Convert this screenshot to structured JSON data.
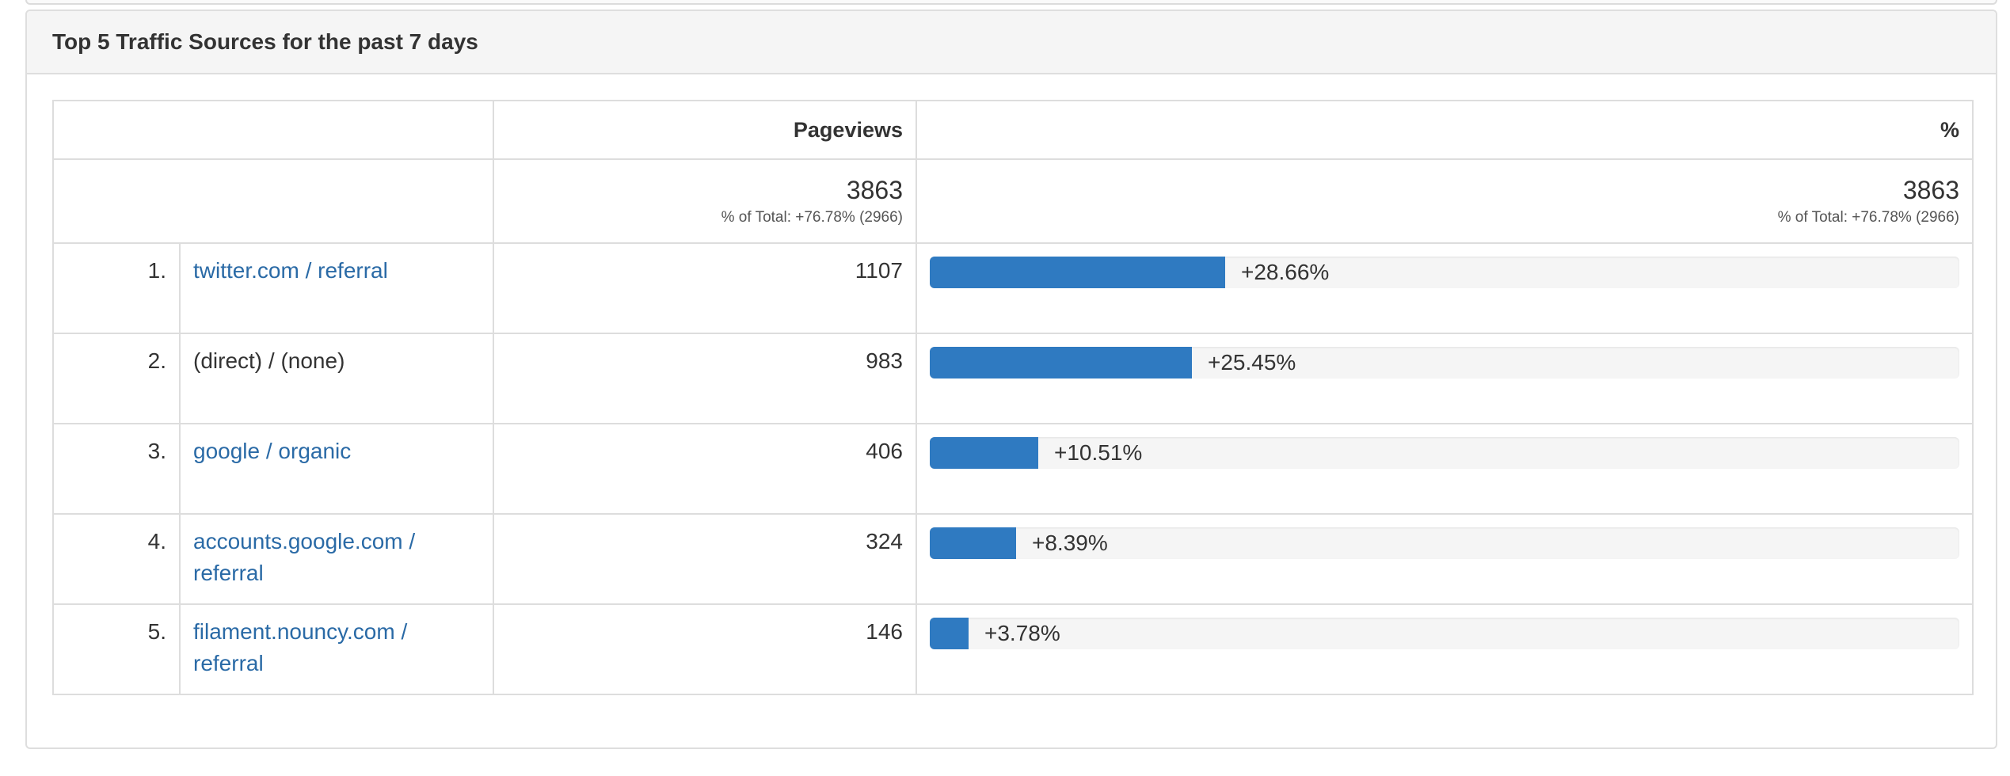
{
  "panel": {
    "title": "Top 5 Traffic Sources for the past 7 days"
  },
  "table": {
    "headers": {
      "pageviews": "Pageviews",
      "percent": "%"
    },
    "totals": {
      "pageviews": "3863",
      "pageviews_sub": "% of Total: +76.78% (2966)",
      "percent": "3863",
      "percent_sub": "% of Total: +76.78% (2966)"
    },
    "rows": [
      {
        "rank": "1.",
        "source": "twitter.com / referral",
        "is_link": true,
        "pageviews": "1107",
        "percent_label": "+28.66%",
        "share": 0.2866
      },
      {
        "rank": "2.",
        "source": "(direct) / (none)",
        "is_link": false,
        "pageviews": "983",
        "percent_label": "+25.45%",
        "share": 0.2545
      },
      {
        "rank": "3.",
        "source": "google / organic",
        "is_link": true,
        "pageviews": "406",
        "percent_label": "+10.51%",
        "share": 0.1051
      },
      {
        "rank": "4.",
        "source": "accounts.google.com / referral",
        "is_link": true,
        "pageviews": "324",
        "percent_label": "+8.39%",
        "share": 0.0839
      },
      {
        "rank": "5.",
        "source": "filament.nouncy.com / referral",
        "is_link": true,
        "pageviews": "146",
        "percent_label": "+3.78%",
        "share": 0.0378
      }
    ]
  },
  "colors": {
    "bar": "#2f7ac1",
    "link": "#2a6aa6",
    "track": "#f5f5f5"
  }
}
